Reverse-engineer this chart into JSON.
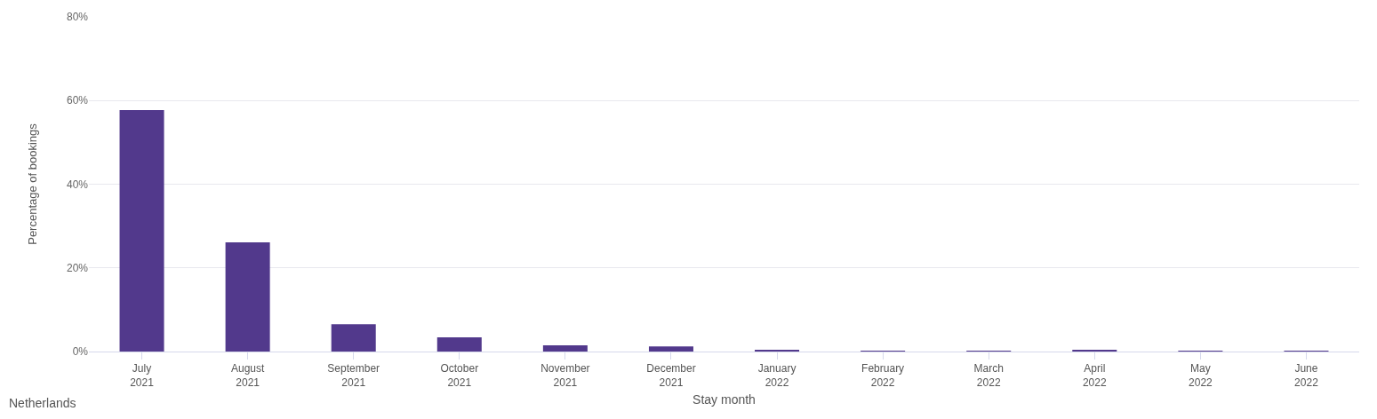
{
  "chart_data": {
    "type": "bar",
    "xlabel": "Stay month",
    "ylabel": "Percentage of bookings",
    "annotations": [
      "Netherlands"
    ],
    "categories": [
      "July 2021",
      "August 2021",
      "September 2021",
      "October 2021",
      "November 2021",
      "December 2021",
      "January 2022",
      "February 2022",
      "March 2022",
      "April 2022",
      "May 2022",
      "June 2022"
    ],
    "values": [
      57.7,
      26.1,
      6.5,
      3.4,
      1.5,
      1.2,
      0.4,
      0.1,
      0.1,
      0.4,
      0.1,
      0.1
    ],
    "color": "#52398c",
    "ylim": [
      0,
      80
    ],
    "yticks": [
      {
        "value": 0,
        "label": "0%"
      },
      {
        "value": 20,
        "label": "20%"
      },
      {
        "value": 40,
        "label": "40%"
      },
      {
        "value": 60,
        "label": "60%"
      },
      {
        "value": 80,
        "label": "80%"
      }
    ],
    "grid": "y"
  }
}
